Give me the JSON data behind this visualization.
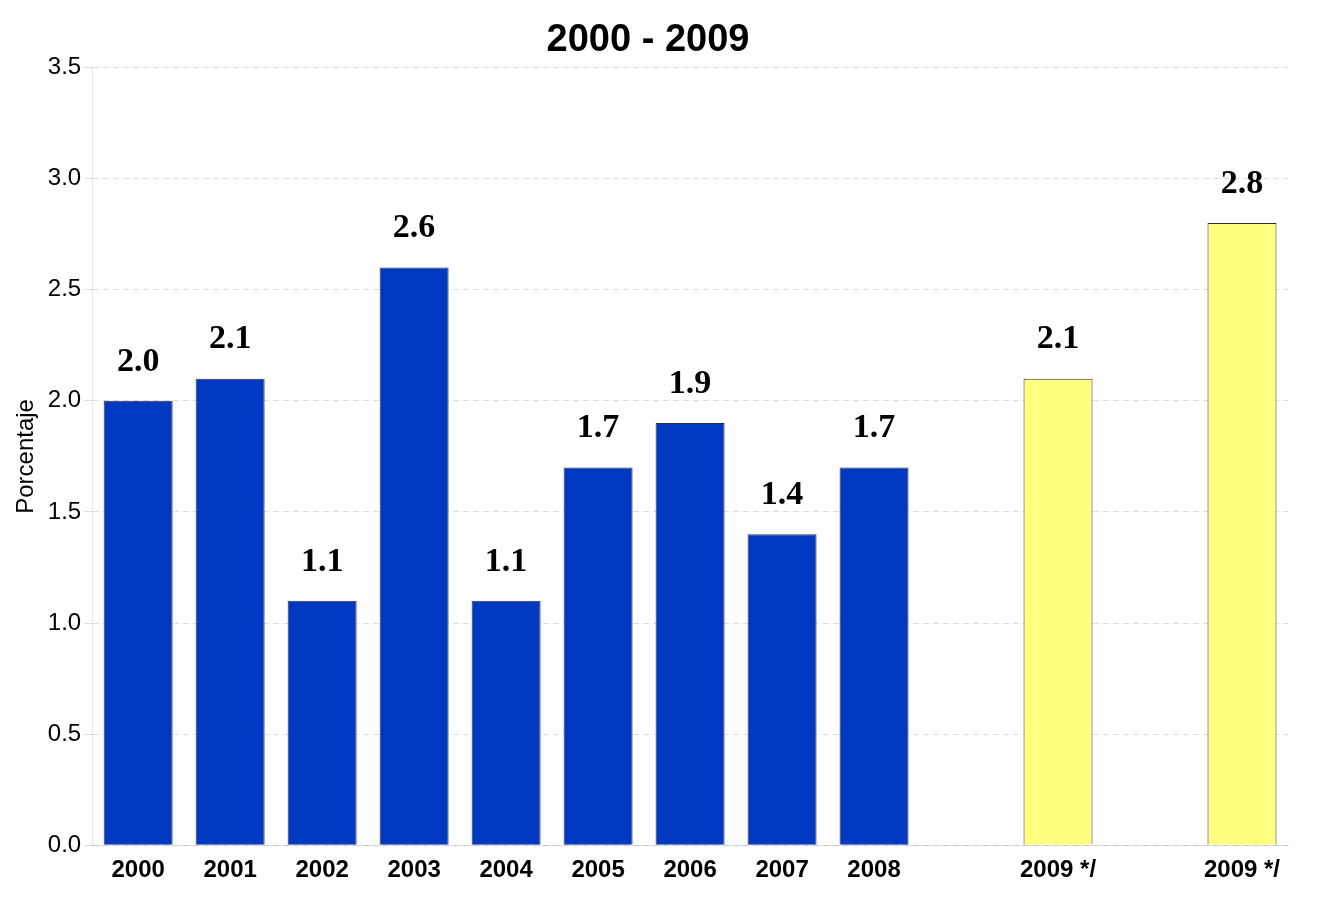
{
  "chart_data": {
    "type": "bar",
    "title": "2000 - 2009",
    "ylabel": "Porcentaje",
    "categories": [
      "2000",
      "2001",
      "2002",
      "2003",
      "2004",
      "2005",
      "2006",
      "2007",
      "2008",
      null,
      "2009 */",
      null,
      "2009 */"
    ],
    "values": [
      2.0,
      2.1,
      1.1,
      2.6,
      1.1,
      1.7,
      1.9,
      1.4,
      1.7,
      null,
      2.1,
      null,
      2.8
    ],
    "colors": [
      "#0039c1",
      "#0039c1",
      "#0039c1",
      "#0039c1",
      "#0039c1",
      "#0039c1",
      "#0039c1",
      "#0039c1",
      "#0039c1",
      "#0039c1",
      "#ffff80",
      "#0039c1",
      "#ffff80"
    ],
    "ylim": [
      0,
      3.5
    ],
    "yticks": [
      {
        "value": 0,
        "label": "0.0"
      },
      {
        "value": 0.5,
        "label": "0.5"
      },
      {
        "value": 1,
        "label": "1.0"
      },
      {
        "value": 1.5,
        "label": "1.5"
      },
      {
        "value": 2,
        "label": "2.0"
      },
      {
        "value": 2.5,
        "label": "2.5"
      },
      {
        "value": 3,
        "label": "3.0"
      },
      {
        "value": 3.5,
        "label": "3.5"
      }
    ],
    "value_labels": [
      "2.0",
      "2.1",
      "1.1",
      "2.6",
      "1.1",
      "1.7",
      "1.9",
      "1.4",
      "1.7",
      null,
      "2.1",
      null,
      "2.8"
    ],
    "grid": "y",
    "legend": false
  }
}
